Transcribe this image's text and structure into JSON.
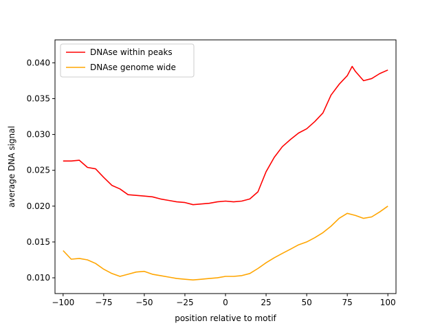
{
  "chart_data": {
    "type": "line",
    "title": "",
    "xlabel": "position relative to motif",
    "ylabel": "average DNA signal",
    "xlim": [
      -105,
      105
    ],
    "ylim": [
      0.0078,
      0.0432
    ],
    "xticks": [
      -100,
      -75,
      -50,
      -25,
      0,
      25,
      50,
      75,
      100
    ],
    "xtick_labels": [
      "−100",
      "−75",
      "−50",
      "−25",
      "0",
      "25",
      "50",
      "75",
      "100"
    ],
    "yticks": [
      0.01,
      0.015,
      0.02,
      0.025,
      0.03,
      0.035,
      0.04
    ],
    "ytick_labels": [
      "0.010",
      "0.015",
      "0.020",
      "0.025",
      "0.030",
      "0.035",
      "0.040"
    ],
    "grid": false,
    "legend_position": "top-left",
    "series": [
      {
        "name": "DNAse within peaks",
        "color": "#ff0000",
        "x": [
          -100,
          -95,
          -90,
          -85,
          -80,
          -75,
          -70,
          -65,
          -60,
          -55,
          -50,
          -45,
          -40,
          -35,
          -30,
          -25,
          -20,
          -15,
          -10,
          -5,
          0,
          5,
          10,
          15,
          20,
          25,
          30,
          35,
          40,
          45,
          50,
          55,
          60,
          65,
          70,
          75,
          78,
          80,
          85,
          90,
          95,
          100
        ],
        "y": [
          0.0263,
          0.0263,
          0.0264,
          0.0254,
          0.0252,
          0.024,
          0.0229,
          0.0224,
          0.0216,
          0.0215,
          0.0214,
          0.0213,
          0.021,
          0.0208,
          0.0206,
          0.0205,
          0.0202,
          0.0203,
          0.0204,
          0.0206,
          0.0207,
          0.0206,
          0.0207,
          0.021,
          0.022,
          0.0248,
          0.0268,
          0.0283,
          0.0293,
          0.0302,
          0.0308,
          0.0318,
          0.033,
          0.0355,
          0.037,
          0.0382,
          0.0395,
          0.0388,
          0.0375,
          0.0378,
          0.0385,
          0.039
        ]
      },
      {
        "name": "DNAse genome wide",
        "color": "#ffa500",
        "x": [
          -100,
          -95,
          -90,
          -85,
          -80,
          -75,
          -70,
          -65,
          -60,
          -55,
          -50,
          -45,
          -40,
          -35,
          -30,
          -25,
          -20,
          -15,
          -10,
          -5,
          0,
          5,
          10,
          15,
          20,
          25,
          30,
          35,
          40,
          45,
          50,
          55,
          60,
          65,
          70,
          75,
          80,
          85,
          90,
          95,
          100
        ],
        "y": [
          0.0138,
          0.0126,
          0.0127,
          0.0125,
          0.012,
          0.0112,
          0.0106,
          0.0102,
          0.0105,
          0.0108,
          0.0109,
          0.0105,
          0.0103,
          0.0101,
          0.0099,
          0.0098,
          0.0097,
          0.0098,
          0.0099,
          0.01,
          0.0102,
          0.0102,
          0.0103,
          0.0106,
          0.0113,
          0.0121,
          0.0128,
          0.0134,
          0.014,
          0.0146,
          0.015,
          0.0156,
          0.0163,
          0.0172,
          0.0183,
          0.019,
          0.0187,
          0.0183,
          0.0185,
          0.0192,
          0.02
        ]
      }
    ]
  }
}
